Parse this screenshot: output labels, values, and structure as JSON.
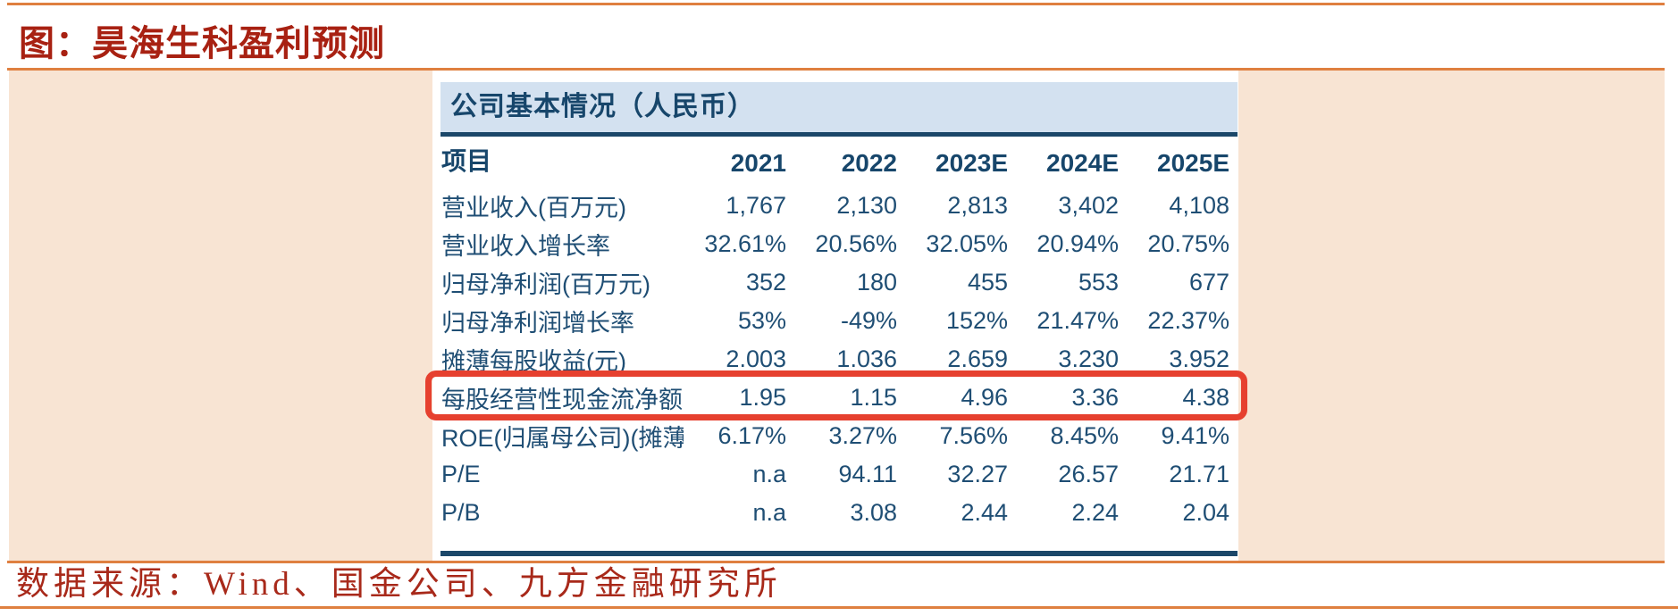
{
  "page": {
    "title": "图：昊海生科盈利预测",
    "source": "数据来源：Wind、国金公司、九方金融研究所"
  },
  "table": {
    "band_title": "公司基本情况（人民币）",
    "columns": [
      "项目",
      "2021",
      "2022",
      "2023E",
      "2024E",
      "2025E"
    ],
    "rows": [
      {
        "label": "营业收入(百万元)",
        "values": [
          "1,767",
          "2,130",
          "2,813",
          "3,402",
          "4,108"
        ],
        "highlighted": false
      },
      {
        "label": "营业收入增长率",
        "values": [
          "32.61%",
          "20.56%",
          "32.05%",
          "20.94%",
          "20.75%"
        ],
        "highlighted": false
      },
      {
        "label": "归母净利润(百万元)",
        "values": [
          "352",
          "180",
          "455",
          "553",
          "677"
        ],
        "highlighted": false
      },
      {
        "label": "归母净利润增长率",
        "values": [
          "53%",
          "-49%",
          "152%",
          "21.47%",
          "22.37%"
        ],
        "highlighted": true
      },
      {
        "label": "摊薄每股收益(元)",
        "values": [
          "2.003",
          "1.036",
          "2.659",
          "3.230",
          "3.952"
        ],
        "highlighted": false
      },
      {
        "label": "每股经营性现金流净额",
        "values": [
          "1.95",
          "1.15",
          "4.96",
          "3.36",
          "4.38"
        ],
        "highlighted": false
      },
      {
        "label": "ROE(归属母公司)(摊薄)",
        "values": [
          "6.17%",
          "3.27%",
          "7.56%",
          "8.45%",
          "9.41%"
        ],
        "highlighted": false
      },
      {
        "label": "P/E",
        "values": [
          "n.a",
          "94.11",
          "32.27",
          "26.57",
          "21.71"
        ],
        "highlighted": false
      },
      {
        "label": "P/B",
        "values": [
          "n.a",
          "3.08",
          "2.44",
          "2.24",
          "2.04"
        ],
        "highlighted": false
      }
    ]
  },
  "colors": {
    "accent_orange_rule": "#df8040",
    "title_red": "#a82112",
    "source_red": "#a8291a",
    "peach_background": "#f8e4d3",
    "band_blue": "#d3e1f0",
    "navy_rule": "#1b4769",
    "table_text_navy": "#1f4e74",
    "highlight_red": "#e6402f"
  }
}
